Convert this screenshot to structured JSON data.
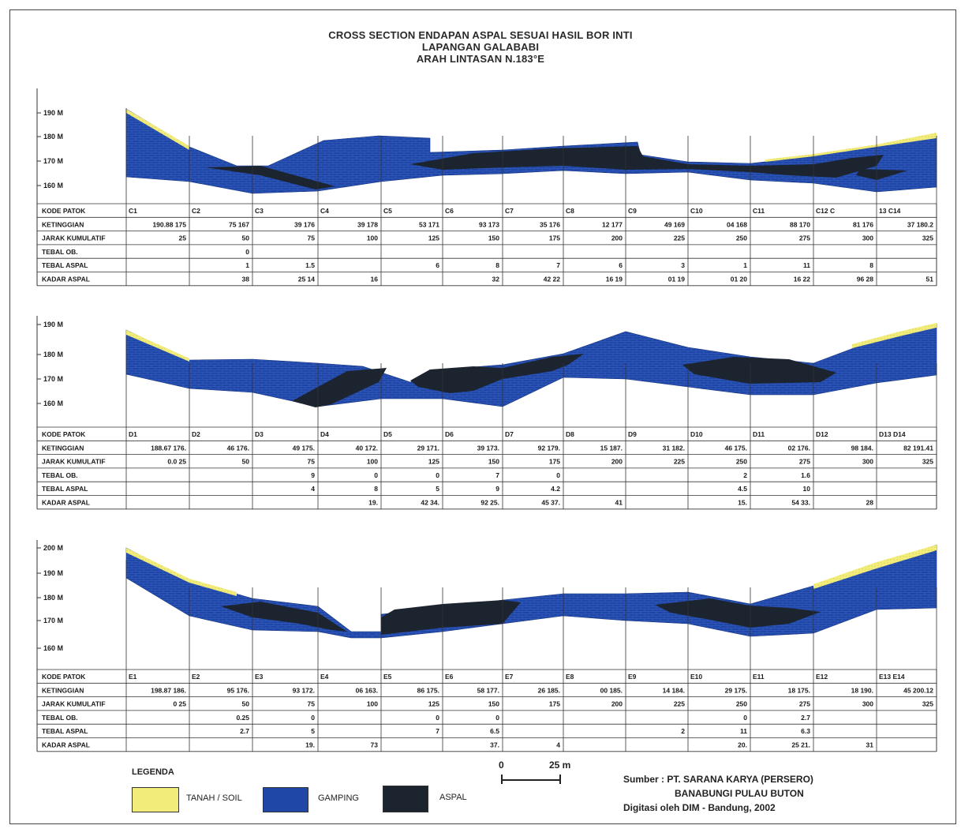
{
  "title": {
    "line1": "CROSS SECTION ENDAPAN ASPAL SESUAI HASIL BOR INTI",
    "line2": "LAPANGAN GALABABI",
    "line3": "ARAH LINTASAN  N.183°E"
  },
  "colors": {
    "soil": "#f2ec7a",
    "limestone": "#1f47a8",
    "asphalt": "#1c2430",
    "grid": "#333333"
  },
  "row_labels": [
    "KODE PATOK",
    "KETINGGIAN",
    "JARAK KUMULATIF",
    "TEBAL OB.",
    "TEBAL ASPAL",
    "KADAR ASPAL"
  ],
  "sections": [
    {
      "y_ticks": [
        "190 M",
        "180 M",
        "170 M",
        "160 M"
      ],
      "cells": [
        [
          "C1",
          "C2",
          "C3",
          "C4",
          "C5",
          "C6",
          "C7",
          "C8",
          "C9",
          "C10",
          "C11",
          "C12   C",
          "13    C14"
        ],
        [
          "190.88   175",
          "75      167",
          "39     176",
          "39     178",
          "53     171",
          "93     173",
          "35     176",
          "12     177",
          "49     169",
          "04     168",
          "88     170",
          "81     176",
          "37     180.2"
        ],
        [
          "25",
          "50",
          "75",
          "100",
          "125",
          "150",
          "175",
          "200",
          "225",
          "250",
          "275",
          "300",
          "325"
        ],
        [
          "",
          "0",
          "",
          "",
          "",
          "",
          "",
          "",
          "",
          "",
          "",
          "",
          ""
        ],
        [
          "",
          "1",
          "1.5",
          "",
          "6",
          "8",
          "7",
          "6",
          "3",
          "1",
          "11",
          "8",
          ""
        ],
        [
          "",
          "38",
          "25    14",
          "16",
          "",
          "32",
          "42    22",
          "16    19",
          "01    19",
          "01    20",
          "16    22",
          "96    28",
          "51"
        ]
      ]
    },
    {
      "y_ticks": [
        "190 M",
        "180 M",
        "170 M",
        "160 M"
      ],
      "cells": [
        [
          "D1",
          "D2",
          "D3",
          "D4",
          "D5",
          "D6",
          "D7",
          "D8",
          "D9",
          "D10",
          "D11",
          "D12",
          "D13    D14"
        ],
        [
          "188.67    176.",
          "46     176.",
          "49     175.",
          "40     172.",
          "29     171.",
          "39     173.",
          "92     179.",
          "15     187.",
          "31     182.",
          "46     175.",
          "02     176.",
          "98     184.",
          "82     191.41"
        ],
        [
          "0.0       25",
          "50",
          "75",
          "100",
          "125",
          "150",
          "175",
          "200",
          "225",
          "250",
          "275",
          "300",
          "325"
        ],
        [
          "",
          "",
          "9",
          "0",
          "0",
          "7",
          "0",
          "",
          "",
          "2",
          "1.6",
          "",
          ""
        ],
        [
          "",
          "",
          "4",
          "8",
          "5",
          "9",
          "4.2",
          "",
          "",
          "4.5",
          "10",
          "",
          ""
        ],
        [
          "",
          "",
          "",
          "19.",
          "42     34.",
          "92     25.",
          "45     37.",
          "41",
          "",
          "15.",
          "54     33.",
          "28",
          ""
        ]
      ]
    },
    {
      "y_ticks": [
        "200 M",
        "190 M",
        "180 M",
        "170 M",
        "160 M"
      ],
      "cells": [
        [
          "E1",
          "E2",
          "E3",
          "E4",
          "E5",
          "E6",
          "E7",
          "E8",
          "E9",
          "E10",
          "E11",
          "E12",
          "E13    E14"
        ],
        [
          "198.87    186.",
          "95     176.",
          "93     172.",
          "06     163.",
          "86     175.",
          "58     177.",
          "26     185.",
          "00     185.",
          "14     184.",
          "29     175.",
          "18     175.",
          "18     190.",
          "45     200.12"
        ],
        [
          "0        25",
          "50",
          "75",
          "100",
          "125",
          "150",
          "175",
          "200",
          "225",
          "250",
          "275",
          "300",
          "325"
        ],
        [
          "",
          "0.25",
          "0",
          "",
          "0",
          "0",
          "",
          "",
          "",
          "0",
          "2.7",
          "",
          ""
        ],
        [
          "",
          "2.7",
          "5",
          "",
          "7",
          "6.5",
          "",
          "",
          "2",
          "11",
          "6.3",
          "",
          ""
        ],
        [
          "",
          "",
          "19.",
          "73",
          "",
          "37.",
          "4",
          "",
          "",
          "20.",
          "25     21.",
          "31",
          ""
        ]
      ]
    }
  ],
  "legend": {
    "title": "LEGENDA",
    "soil": "TANAH / SOIL",
    "limestone": "GAMPING",
    "asphalt": "ASPAL"
  },
  "scale": {
    "zero": "0",
    "length": "25 m"
  },
  "source": {
    "line1": "Sumber : PT. SARANA KARYA  (PERSERO)",
    "line2": "BANABUNGI PULAU BUTON",
    "line3": "Digitasi oleh DIM - Bandung, 2002"
  }
}
